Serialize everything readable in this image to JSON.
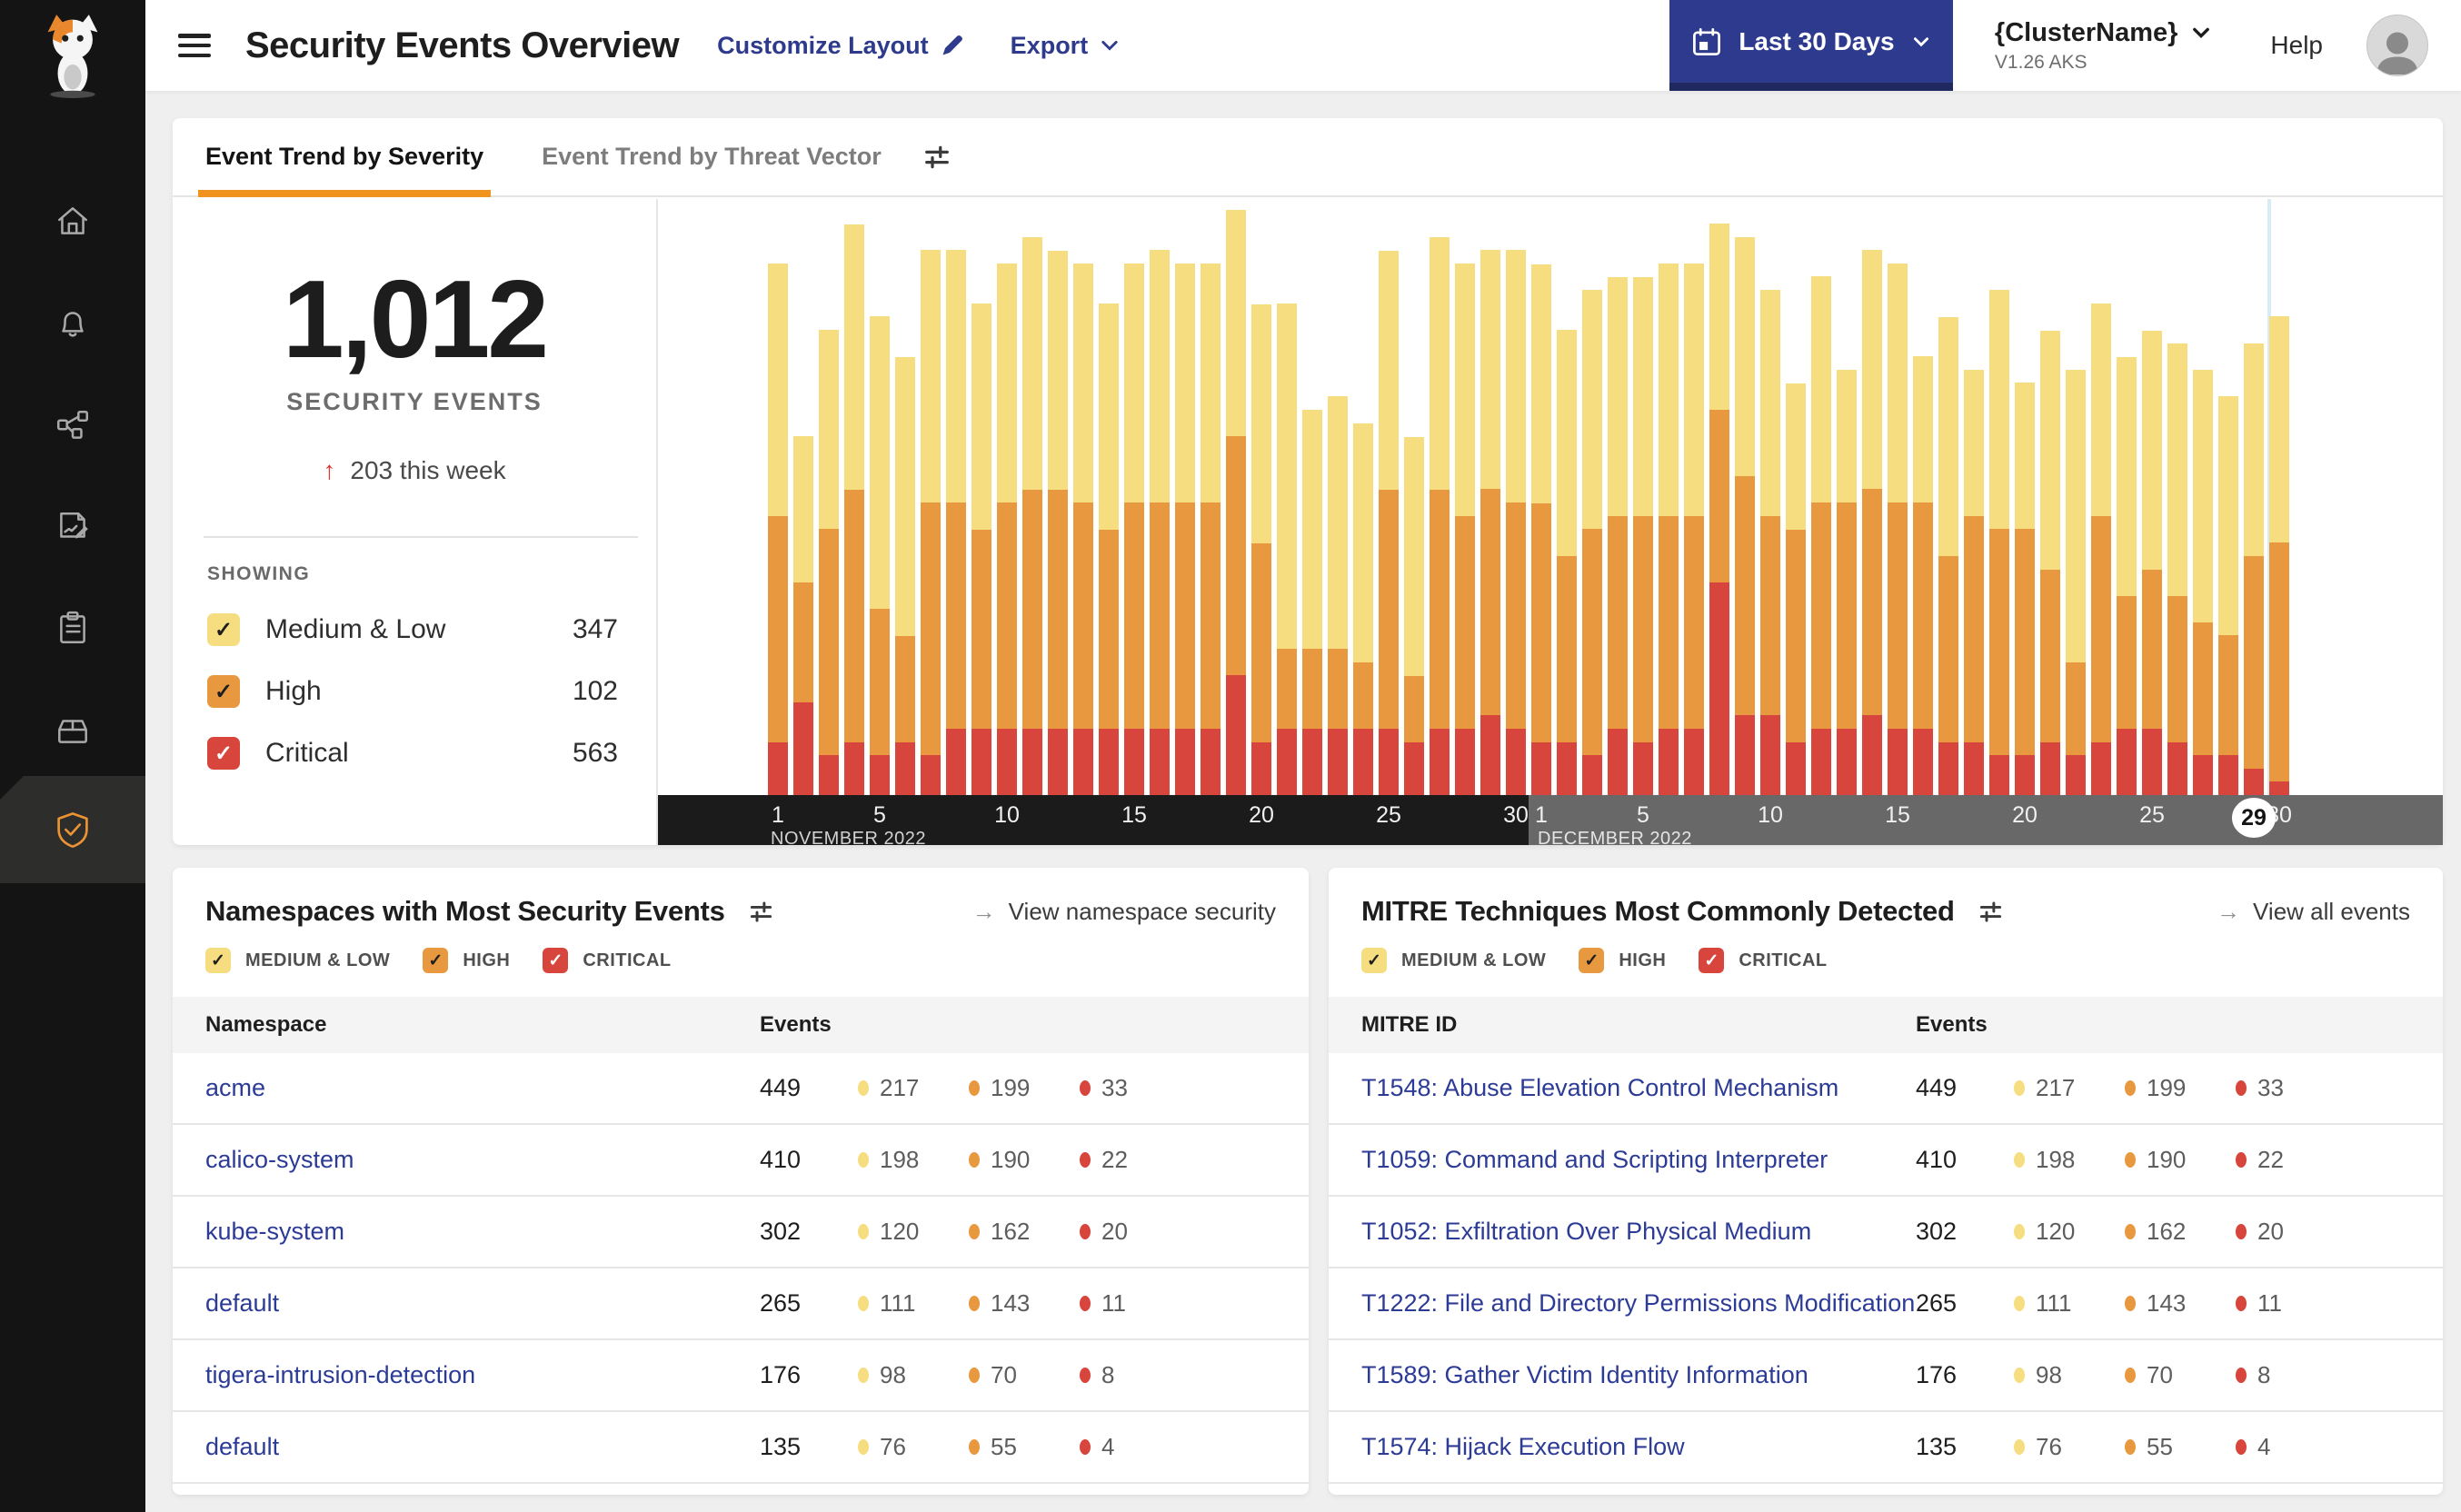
{
  "colors": {
    "severity": {
      "medium_low": "#F6DD80",
      "high": "#E8993F",
      "critical": "#D8453C"
    },
    "link_indigo": "#2E3A8C",
    "table_link": "#2C3B96",
    "tab_underline": "#F0941F",
    "date_button": "#2D3A8E",
    "notification_dot": "#F0519A",
    "shield_active": "#EC9435",
    "highlight_line": "#D8ECF6",
    "axis_november": "#1B1B1B",
    "axis_december": "#686868"
  },
  "sidebar": {
    "icons": [
      "calico-cat-logo",
      "home-icon",
      "notifications-bell-icon",
      "service-graph-icon",
      "policies-edit-icon",
      "compliance-clipboard-icon",
      "workloads-box-icon",
      "threat-defense-shield-icon"
    ],
    "active_item": "threat-defense-shield-icon"
  },
  "header": {
    "title": "Security Events Overview",
    "customize_label": "Customize Layout",
    "export_label": "Export",
    "date_range": "Last 30 Days",
    "cluster_name": "{ClusterName}",
    "cluster_version": "V1.26 AKS",
    "help_label": "Help"
  },
  "trend_card": {
    "tabs": [
      {
        "label": "Event Trend by Severity",
        "active": true
      },
      {
        "label": "Event Trend by Threat Vector",
        "active": false
      }
    ],
    "stat": {
      "total": "1,012",
      "caption": "SECURITY EVENTS",
      "delta": "203 this week"
    },
    "showing_label": "SHOWING",
    "filters": [
      {
        "label": "Medium & Low",
        "count": "347",
        "color": "#F6DD80",
        "check": "#1f1f1f",
        "checked": true
      },
      {
        "label": "High",
        "count": "102",
        "color": "#E8993F",
        "check": "#1f1f1f",
        "checked": true
      },
      {
        "label": "Critical",
        "count": "563",
        "color": "#D8453C",
        "check": "#ffffff",
        "checked": true
      }
    ]
  },
  "chart_data": {
    "type": "bar",
    "stacked": true,
    "title": "Event Trend by Severity",
    "ylim": [
      0,
      45
    ],
    "grid": false,
    "legend_position": "left-panel",
    "months": [
      {
        "label": "NOVEMBER 2022",
        "tick_days": [
          1,
          5,
          10,
          15,
          20,
          25,
          30
        ]
      },
      {
        "label": "DECEMBER 2022",
        "tick_days": [
          1,
          5,
          10,
          15,
          20,
          25,
          30
        ]
      }
    ],
    "highlighted_day": {
      "month_index": 1,
      "day": 29
    },
    "series": [
      {
        "name": "Medium & Low",
        "color": "#F6DD80",
        "values": [
          19,
          11,
          15,
          20,
          22,
          21,
          19,
          19,
          17,
          18,
          19,
          18,
          18,
          17,
          18,
          19,
          18,
          18,
          17,
          18,
          26,
          18,
          19,
          18,
          18,
          18,
          19,
          19,
          18,
          19,
          18,
          17,
          18,
          18,
          18,
          19,
          19,
          14,
          18,
          17,
          11,
          17,
          10,
          18,
          18,
          11,
          18,
          11,
          18,
          11,
          18,
          22,
          16,
          18,
          18,
          19,
          19,
          18,
          16,
          17
        ]
      },
      {
        "name": "High",
        "color": "#E8993F",
        "values": [
          17,
          9,
          17,
          19,
          11,
          8,
          19,
          17,
          15,
          17,
          18,
          18,
          17,
          15,
          17,
          17,
          17,
          17,
          18,
          15,
          6,
          6,
          6,
          5,
          18,
          5,
          18,
          16,
          17,
          17,
          18,
          14,
          17,
          16,
          17,
          16,
          16,
          13,
          18,
          15,
          16,
          17,
          17,
          17,
          17,
          17,
          14,
          17,
          17,
          17,
          13,
          7,
          17,
          10,
          12,
          11,
          10,
          9,
          16,
          18
        ]
      },
      {
        "name": "Critical",
        "color": "#D8453C",
        "values": [
          4,
          7,
          3,
          4,
          3,
          4,
          3,
          5,
          5,
          5,
          5,
          5,
          5,
          5,
          5,
          5,
          5,
          5,
          9,
          4,
          5,
          5,
          5,
          5,
          5,
          4,
          5,
          5,
          6,
          5,
          4,
          4,
          3,
          5,
          4,
          5,
          5,
          16,
          6,
          6,
          4,
          5,
          5,
          6,
          5,
          5,
          4,
          4,
          3,
          3,
          4,
          3,
          4,
          5,
          5,
          4,
          3,
          3,
          2,
          1
        ]
      }
    ]
  },
  "namespaces_card": {
    "title": "Namespaces with Most Security Events",
    "link": "View namespace security",
    "filters": [
      {
        "label": "MEDIUM & LOW",
        "color": "#F6DD80",
        "check": "#1f1f1f",
        "checked": true
      },
      {
        "label": "HIGH",
        "color": "#E8993F",
        "check": "#1f1f1f",
        "checked": true
      },
      {
        "label": "CRITICAL",
        "color": "#D8453C",
        "check": "#ffffff",
        "checked": true
      }
    ],
    "columns": [
      "Namespace",
      "Events"
    ],
    "rows": [
      {
        "name": "acme",
        "total": "449",
        "medium_low": "217",
        "high": "199",
        "critical": "33"
      },
      {
        "name": "calico-system",
        "total": "410",
        "medium_low": "198",
        "high": "190",
        "critical": "22"
      },
      {
        "name": "kube-system",
        "total": "302",
        "medium_low": "120",
        "high": "162",
        "critical": "20"
      },
      {
        "name": "default",
        "total": "265",
        "medium_low": "111",
        "high": "143",
        "critical": "11"
      },
      {
        "name": "tigera-intrusion-detection",
        "total": "176",
        "medium_low": "98",
        "high": "70",
        "critical": "8"
      },
      {
        "name": "default",
        "total": "135",
        "medium_low": "76",
        "high": "55",
        "critical": "4"
      }
    ]
  },
  "mitre_card": {
    "title": "MITRE Techniques Most Commonly Detected",
    "link": "View all events",
    "filters": [
      {
        "label": "MEDIUM & LOW",
        "color": "#F6DD80",
        "check": "#1f1f1f",
        "checked": true
      },
      {
        "label": "HIGH",
        "color": "#E8993F",
        "check": "#1f1f1f",
        "checked": true
      },
      {
        "label": "CRITICAL",
        "color": "#D8453C",
        "check": "#ffffff",
        "checked": true
      }
    ],
    "columns": [
      "MITRE ID",
      "Events"
    ],
    "rows": [
      {
        "name": "T1548: Abuse Elevation Control Mechanism",
        "total": "449",
        "medium_low": "217",
        "high": "199",
        "critical": "33"
      },
      {
        "name": "T1059: Command and Scripting Interpreter",
        "total": "410",
        "medium_low": "198",
        "high": "190",
        "critical": "22"
      },
      {
        "name": "T1052: Exfiltration Over Physical Medium",
        "total": "302",
        "medium_low": "120",
        "high": "162",
        "critical": "20"
      },
      {
        "name": "T1222: File and Directory Permissions Modification",
        "total": "265",
        "medium_low": "111",
        "high": "143",
        "critical": "11"
      },
      {
        "name": "T1589: Gather Victim Identity Information",
        "total": "176",
        "medium_low": "98",
        "high": "70",
        "critical": "8"
      },
      {
        "name": "T1574: Hijack Execution Flow",
        "total": "135",
        "medium_low": "76",
        "high": "55",
        "critical": "4"
      }
    ]
  }
}
